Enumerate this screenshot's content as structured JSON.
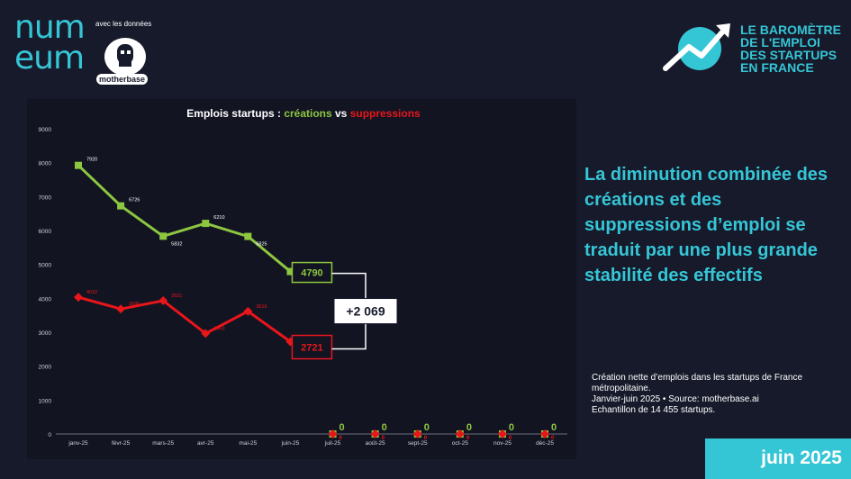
{
  "branding": {
    "logo_line1": "num",
    "logo_line2": "eum",
    "avec_text": "avec les données",
    "partner": "motherbase",
    "barometer": [
      "LE BAROMÈTRE",
      "DE L'EMPLOI",
      "DES STARTUPS",
      "EN FRANCE"
    ]
  },
  "headline": "La diminution combinée des créations et des suppressions d’emploi se traduit par une plus grande stabilité des effectifs",
  "note": {
    "line1": "Création nette d’emplois dans les startups de France métropolitaine.",
    "line2": "Janvier-juin 2025 • Source: motherbase.ai",
    "line3": "Echantillon de 14 455 startups."
  },
  "date_badge": "juin 2025",
  "colors": {
    "accent": "#35c6d6",
    "creations": "#8dc63f",
    "suppressions": "#e8161b"
  },
  "chart_data": {
    "type": "line",
    "title_prefix": "Emplois startups : ",
    "title_creations": "créations",
    "title_vs": " vs ",
    "title_suppressions": "suppressions",
    "categories": [
      "janv-25",
      "févr-25",
      "mars-25",
      "avr-25",
      "mai-25",
      "juin-25",
      "juil-25",
      "août-25",
      "sept-25",
      "oct-25",
      "nov-25",
      "déc-25"
    ],
    "ylim": [
      0,
      9000
    ],
    "yticks": [
      "0",
      "1000",
      "2000",
      "3000",
      "4000",
      "5000",
      "6000",
      "7000",
      "8000",
      "9000"
    ],
    "series": [
      {
        "name": "créations",
        "values": [
          7920,
          6726,
          5832,
          6210,
          5825,
          4790,
          0,
          0,
          0,
          0,
          0,
          0
        ],
        "labels": [
          "7920",
          "6726",
          "5832",
          "6210",
          "5825",
          "4790",
          "0",
          "0",
          "0",
          "0",
          "0",
          "0"
        ]
      },
      {
        "name": "suppressions",
        "values": [
          4032,
          3686,
          3931,
          2963,
          3616,
          2721,
          0,
          0,
          0,
          0,
          0,
          0
        ],
        "labels": [
          "4032",
          "3686",
          "3931",
          "2963",
          "3616",
          "2721",
          "0",
          "0",
          "0",
          "0",
          "0",
          "0"
        ]
      }
    ],
    "difference_label": "+2 069"
  }
}
